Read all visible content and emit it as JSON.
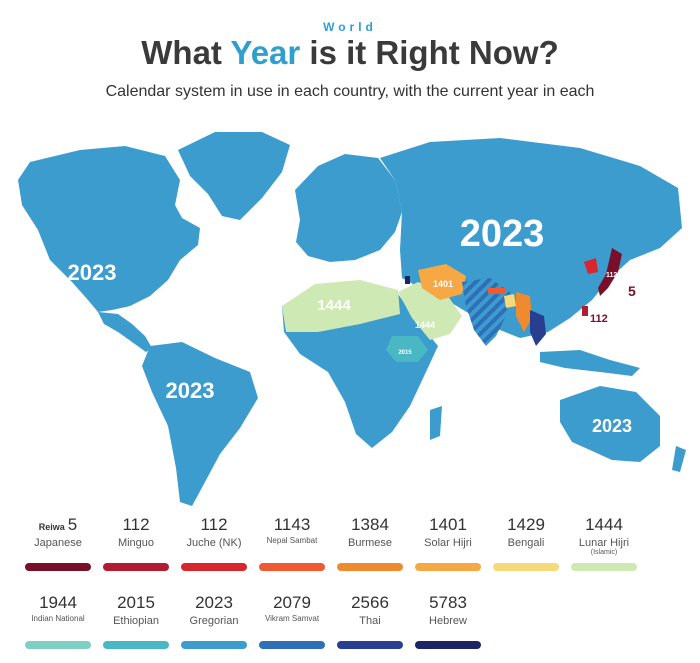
{
  "header": {
    "kicker": "World",
    "title_part1": "What ",
    "title_accent": "Year",
    "title_part2": " is it Right Now?",
    "subtitle": "Calendar system in use in each country, with the current year in each"
  },
  "map_labels": {
    "north_america": "2023",
    "south_america": "2023",
    "asia": "2023",
    "australia": "2023",
    "north_africa": "1444",
    "arabia": "1444",
    "iran": "1401",
    "ethiopia": "2015",
    "taiwan": "112",
    "korea": "112",
    "japan": "5"
  },
  "colors": {
    "ocean": "#ffffff",
    "land": "#3b9ccd",
    "japanese": "#7a0f2a",
    "minguo": "#b31b32",
    "juche": "#d8262f",
    "nepal": "#ef5a32",
    "burmese": "#f08a2e",
    "solar_hijri": "#f6a844",
    "bengali": "#f7d97a",
    "lunar_hijri": "#cfe9b5",
    "indian": "#7fd0c4",
    "ethiopian": "#4ab7c5",
    "gregorian": "#3b9ccd",
    "vikram": "#2f6fb7",
    "thai": "#283f91",
    "hebrew": "#1d2464"
  },
  "legend": [
    {
      "prefix": "Reiwa",
      "year": "5",
      "name": "Japanese",
      "sub": "",
      "color": "#7a0f2a",
      "small": false
    },
    {
      "prefix": "",
      "year": "112",
      "name": "Minguo",
      "sub": "",
      "color": "#b31b32",
      "small": false
    },
    {
      "prefix": "",
      "year": "112",
      "name": "Juche (NK)",
      "sub": "",
      "color": "#d8262f",
      "small": false
    },
    {
      "prefix": "",
      "year": "1143",
      "name": "Nepal Sambat",
      "sub": "",
      "color": "#ef5a32",
      "small": true
    },
    {
      "prefix": "",
      "year": "1384",
      "name": "Burmese",
      "sub": "",
      "color": "#f08a2e",
      "small": false
    },
    {
      "prefix": "",
      "year": "1401",
      "name": "Solar Hijri",
      "sub": "",
      "color": "#f6a844",
      "small": false
    },
    {
      "prefix": "",
      "year": "1429",
      "name": "Bengali",
      "sub": "",
      "color": "#f7d97a",
      "small": false
    },
    {
      "prefix": "",
      "year": "1444",
      "name": "Lunar Hijri",
      "sub": "(Islamic)",
      "color": "#cfe9b5",
      "small": false
    },
    {
      "prefix": "",
      "year": "1944",
      "name": "Indian National",
      "sub": "",
      "color": "#7fd0c4",
      "small": true
    },
    {
      "prefix": "",
      "year": "2015",
      "name": "Ethiopian",
      "sub": "",
      "color": "#4ab7c5",
      "small": false
    },
    {
      "prefix": "",
      "year": "2023",
      "name": "Gregorian",
      "sub": "",
      "color": "#3b9ccd",
      "small": false
    },
    {
      "prefix": "",
      "year": "2079",
      "name": "Vikram Samvat",
      "sub": "",
      "color": "#2f6fb7",
      "small": true
    },
    {
      "prefix": "",
      "year": "2566",
      "name": "Thai",
      "sub": "",
      "color": "#283f91",
      "small": false
    },
    {
      "prefix": "",
      "year": "5783",
      "name": "Hebrew",
      "sub": "",
      "color": "#1d2464",
      "small": false
    }
  ]
}
